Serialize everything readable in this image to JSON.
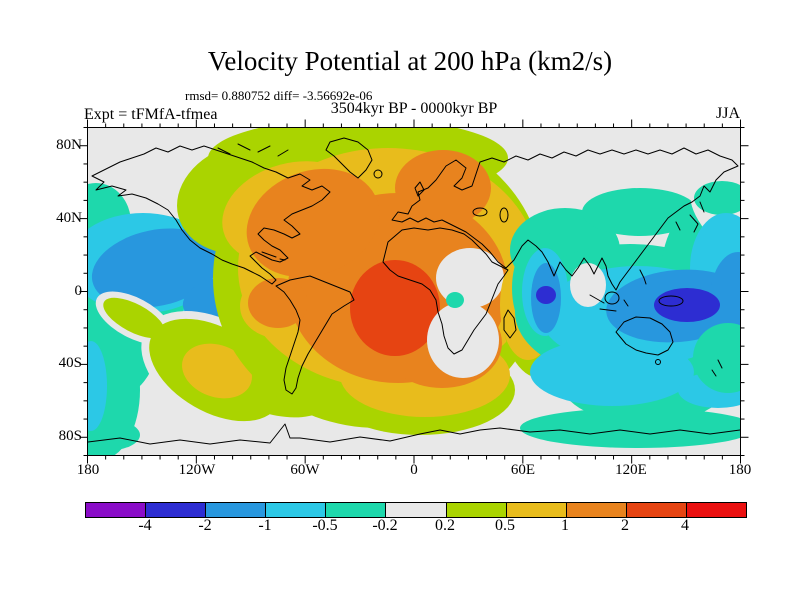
{
  "figure": {
    "title": "Velocity Potential at 200 hPa (km2/s)",
    "stats_line": "rmsd= 0.880752 diff= -3.56692e-06",
    "period_line": "3504kyr BP - 0000kyr BP",
    "experiment_label": "Expt = tFMfA-tfmea",
    "season_label": "JJA"
  },
  "chart_data": {
    "type": "heatmap",
    "subtype": "filled-contour-world-map",
    "title": "Velocity Potential at 200 hPa (km2/s)",
    "units": "km2/s",
    "pressure_level": "200 hPa",
    "season": "JJA",
    "experiment": "tFMfA-tfmea",
    "difference_of": "3504kyr BP - 0000kyr BP",
    "rmsd": 0.880752,
    "diff": -3.56692e-06,
    "x_axis": {
      "tick_labels": [
        "180",
        "120W",
        "60W",
        "0",
        "60E",
        "120E",
        "180"
      ],
      "range_deg": [
        -180,
        180
      ],
      "minor_tick_step_deg": 10
    },
    "y_axis": {
      "tick_labels": [
        "80N",
        "40N",
        "0",
        "40S",
        "80S"
      ],
      "range_deg": [
        -90,
        90
      ],
      "minor_tick_step_deg": 10
    },
    "contour_levels": [
      -4,
      -2,
      -1,
      -0.5,
      -0.2,
      0.2,
      0.5,
      1,
      2,
      4
    ],
    "grid": false,
    "anomaly_centers": [
      {
        "region": "Tropical Atlantic / West-Central Africa",
        "sign": "positive",
        "peak_band": "2 to 4",
        "approx_lon": "30W-15E",
        "approx_lat": "20N-20S"
      },
      {
        "region": "North Atlantic / eastern North America / Europe",
        "sign": "positive",
        "peak_band": "1 to 2"
      },
      {
        "region": "Southeast Pacific subtropics",
        "sign": "positive",
        "peak_band": "0.5 to 1",
        "approx_lon": "135W-105W",
        "approx_lat": "30S-45S"
      },
      {
        "region": "Western tropical Pacific / New Guinea",
        "sign": "negative",
        "peak_band": "-2 to -4",
        "approx_lon": "140E-165E",
        "approx_lat": "0-15S"
      },
      {
        "region": "Southern India / Arabian Sea",
        "sign": "negative",
        "peak_band": "-2 to -4",
        "approx_lon": "70E-80E",
        "approx_lat": "0-10N"
      },
      {
        "region": "Central North Pacific",
        "sign": "negative",
        "peak_band": "-1 to -2",
        "approx_lon": "180-150W",
        "approx_lat": "25N-5S"
      },
      {
        "region": "Indian Ocean / northern Australia",
        "sign": "negative",
        "peak_band": "-1 to -2"
      }
    ]
  },
  "colorbar": {
    "labels": [
      "-4",
      "-2",
      "-1",
      "-0.5",
      "-0.2",
      "0.2",
      "0.5",
      "1",
      "2",
      "4"
    ],
    "colors": [
      "#8a0cc8",
      "#2d2dd2",
      "#2897de",
      "#2cc8e6",
      "#1ed8ac",
      "#e8e8e8",
      "#aad400",
      "#e8bc1c",
      "#e8831e",
      "#e64412",
      "#ea1010"
    ]
  }
}
